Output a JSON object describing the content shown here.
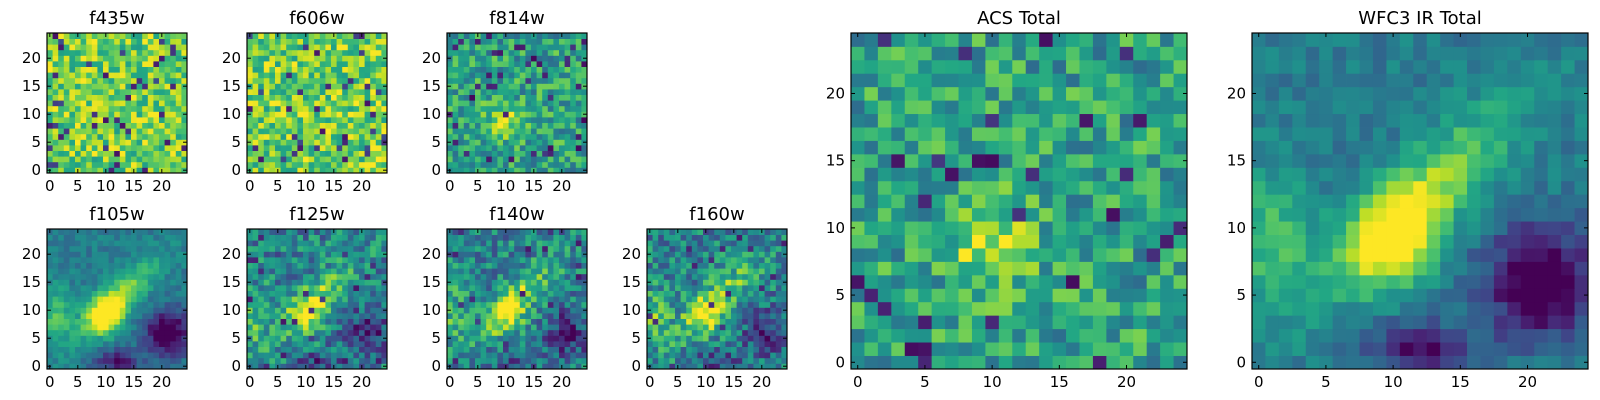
{
  "chart_data": [
    {
      "type": "heatmap",
      "title": "f435w",
      "grid_size": 25,
      "colormap": "viridis",
      "x_ticks": [
        "0",
        "5",
        "10",
        "15",
        "20"
      ],
      "y_ticks": [
        "0",
        "5",
        "10",
        "15",
        "20"
      ],
      "pattern": "noise-high",
      "seed": 11
    },
    {
      "type": "heatmap",
      "title": "f606w",
      "grid_size": 25,
      "colormap": "viridis",
      "x_ticks": [
        "0",
        "5",
        "10",
        "15",
        "20"
      ],
      "y_ticks": [
        "0",
        "5",
        "10",
        "15",
        "20"
      ],
      "pattern": "noise-high",
      "seed": 22
    },
    {
      "type": "heatmap",
      "title": "f814w",
      "grid_size": 25,
      "colormap": "viridis",
      "x_ticks": [
        "0",
        "5",
        "10",
        "15",
        "20"
      ],
      "y_ticks": [
        "0",
        "5",
        "10",
        "15",
        "20"
      ],
      "pattern": "noise-source",
      "seed": 33
    },
    {
      "type": "heatmap",
      "title": "f105w",
      "grid_size": 25,
      "colormap": "viridis",
      "x_ticks": [
        "0",
        "5",
        "10",
        "15",
        "20"
      ],
      "y_ticks": [
        "0",
        "5",
        "10",
        "15",
        "20"
      ],
      "pattern": "galaxy",
      "seed": 44
    },
    {
      "type": "heatmap",
      "title": "f125w",
      "grid_size": 25,
      "colormap": "viridis",
      "x_ticks": [
        "0",
        "5",
        "10",
        "15",
        "20"
      ],
      "y_ticks": [
        "0",
        "5",
        "10",
        "15",
        "20"
      ],
      "pattern": "galaxy-noisy",
      "seed": 55
    },
    {
      "type": "heatmap",
      "title": "f140w",
      "grid_size": 25,
      "colormap": "viridis",
      "x_ticks": [
        "0",
        "5",
        "10",
        "15",
        "20"
      ],
      "y_ticks": [
        "0",
        "5",
        "10",
        "15",
        "20"
      ],
      "pattern": "galaxy-noisy",
      "seed": 66
    },
    {
      "type": "heatmap",
      "title": "f160w",
      "grid_size": 25,
      "colormap": "viridis",
      "x_ticks": [
        "0",
        "5",
        "10",
        "15",
        "20"
      ],
      "y_ticks": [
        "0",
        "5",
        "10",
        "15",
        "20"
      ],
      "pattern": "galaxy-noisy",
      "seed": 77
    },
    {
      "type": "heatmap",
      "title": "ACS Total",
      "grid_size": 25,
      "colormap": "viridis",
      "x_ticks": [
        "0",
        "5",
        "10",
        "15",
        "20"
      ],
      "y_ticks": [
        "0",
        "5",
        "10",
        "15",
        "20"
      ],
      "pattern": "noise-source",
      "seed": 88
    },
    {
      "type": "heatmap",
      "title": "WFC3 IR Total",
      "grid_size": 25,
      "colormap": "viridis",
      "x_ticks": [
        "0",
        "5",
        "10",
        "15",
        "20"
      ],
      "y_ticks": [
        "0",
        "5",
        "10",
        "15",
        "20"
      ],
      "pattern": "galaxy",
      "seed": 99
    }
  ]
}
